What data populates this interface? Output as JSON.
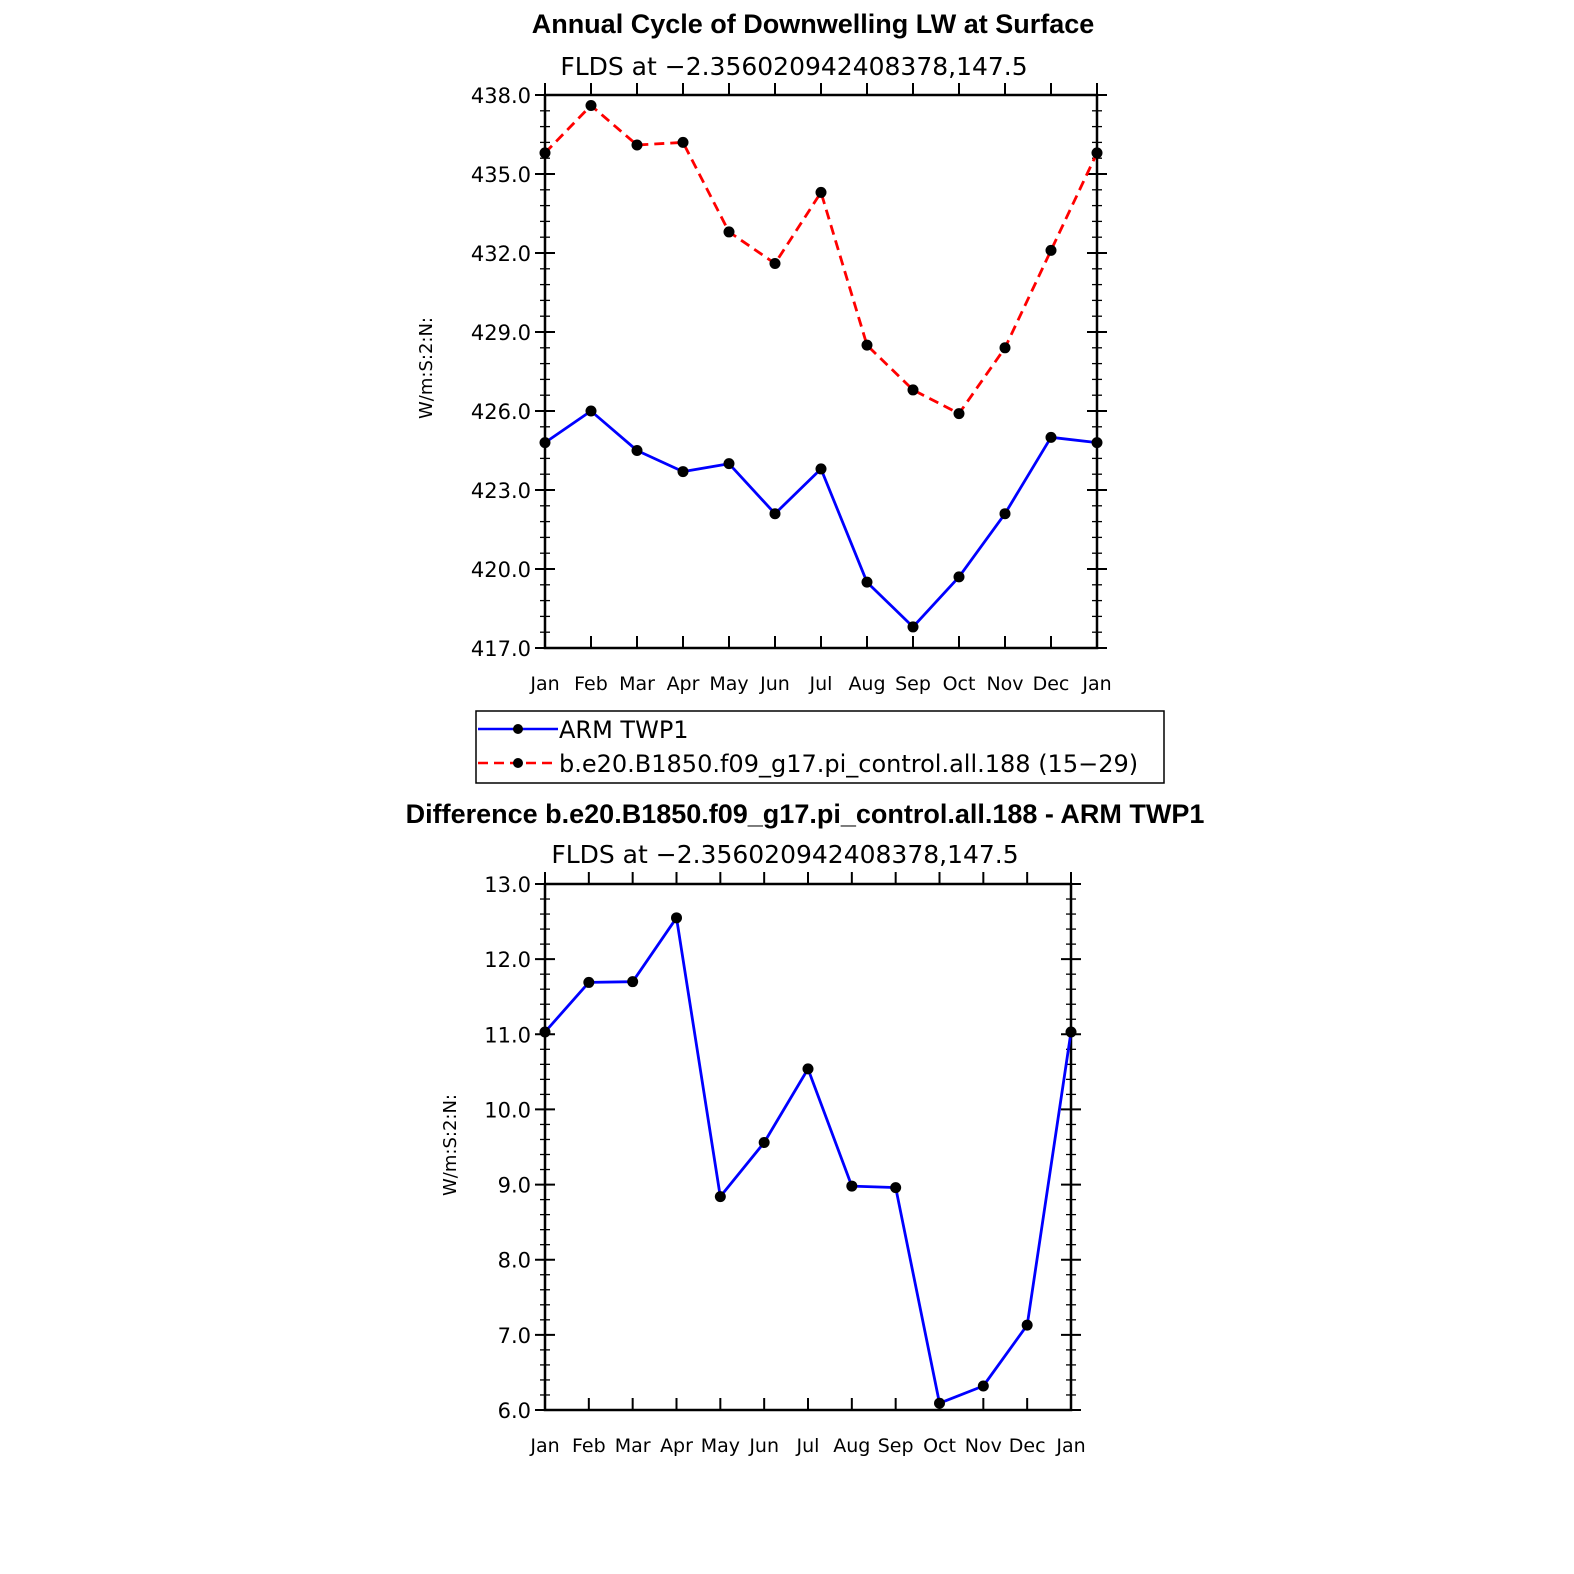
{
  "colors": {
    "obs": "#0000ff",
    "model": "#ff0000",
    "axis": "#000000",
    "marker": "#000000"
  },
  "chart_data": [
    {
      "type": "line",
      "title": "Annual Cycle of Downwelling LW at Surface",
      "subtitle": "FLDS at −2.356020942408378,147.5",
      "ylabel": "W/m:S:2:N:",
      "ylim": [
        417.0,
        438.0
      ],
      "yticks": [
        "417.0",
        "420.0",
        "423.0",
        "426.0",
        "429.0",
        "432.0",
        "435.0",
        "438.0"
      ],
      "categories": [
        "Jan",
        "Feb",
        "Mar",
        "Apr",
        "May",
        "Jun",
        "Jul",
        "Aug",
        "Sep",
        "Oct",
        "Nov",
        "Dec",
        "Jan"
      ],
      "series": [
        {
          "name": "ARM TWP1",
          "style": "solid",
          "color": "#0000ff",
          "values": [
            424.8,
            426.0,
            424.5,
            423.7,
            424.0,
            422.1,
            423.8,
            419.5,
            417.8,
            419.7,
            422.1,
            425.0,
            424.8
          ]
        },
        {
          "name": "b.e20.B1850.f09_g17.pi_control.all.188 (15−29)",
          "style": "dashed",
          "color": "#ff0000",
          "values": [
            435.8,
            437.6,
            436.1,
            436.2,
            432.8,
            431.6,
            434.3,
            428.5,
            426.8,
            425.9,
            428.4,
            432.1,
            435.8
          ]
        }
      ],
      "legend": "below"
    },
    {
      "type": "line",
      "title": "Difference b.e20.B1850.f09_g17.pi_control.all.188 - ARM TWP1",
      "subtitle": "FLDS at −2.356020942408378,147.5",
      "ylabel": "W/m:S:2:N:",
      "ylim": [
        6.0,
        13.0
      ],
      "yticks": [
        "6.0",
        "7.0",
        "8.0",
        "9.0",
        "10.0",
        "11.0",
        "12.0",
        "13.0"
      ],
      "categories": [
        "Jan",
        "Feb",
        "Mar",
        "Apr",
        "May",
        "Jun",
        "Jul",
        "Aug",
        "Sep",
        "Oct",
        "Nov",
        "Dec",
        "Jan"
      ],
      "series": [
        {
          "style": "solid",
          "color": "#0000ff",
          "values": [
            11.03,
            11.69,
            11.7,
            12.55,
            8.84,
            9.56,
            10.54,
            8.98,
            8.96,
            6.09,
            6.32,
            7.13,
            11.03
          ]
        }
      ]
    }
  ]
}
